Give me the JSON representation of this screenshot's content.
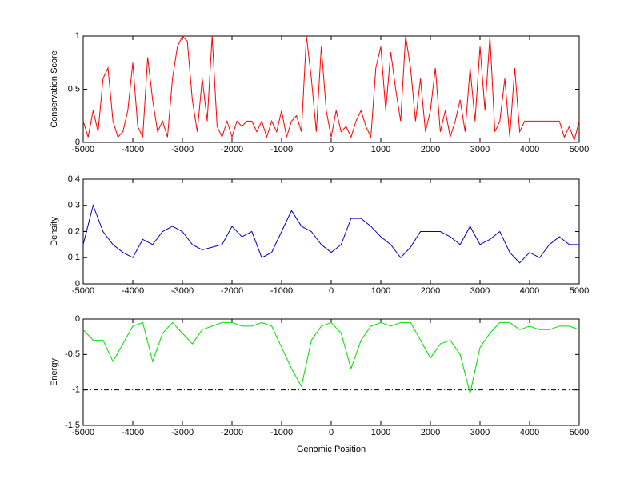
{
  "chart_data": [
    {
      "type": "line",
      "ylabel": "Conservation Score",
      "x": [
        -5000,
        -4900,
        -4800,
        -4700,
        -4600,
        -4500,
        -4400,
        -4300,
        -4200,
        -4100,
        -4000,
        -3900,
        -3800,
        -3700,
        -3600,
        -3500,
        -3400,
        -3300,
        -3200,
        -3100,
        -3000,
        -2900,
        -2800,
        -2700,
        -2600,
        -2500,
        -2400,
        -2300,
        -2200,
        -2100,
        -2000,
        -1900,
        -1800,
        -1700,
        -1600,
        -1500,
        -1400,
        -1300,
        -1200,
        -1100,
        -1000,
        -900,
        -800,
        -700,
        -600,
        -500,
        -400,
        -300,
        -200,
        -100,
        0,
        100,
        200,
        300,
        400,
        500,
        600,
        700,
        800,
        900,
        1000,
        1100,
        1200,
        1300,
        1400,
        1500,
        1600,
        1700,
        1800,
        1900,
        2000,
        2100,
        2200,
        2300,
        2400,
        2500,
        2600,
        2700,
        2800,
        2900,
        3000,
        3100,
        3200,
        3300,
        3400,
        3500,
        3600,
        3700,
        3800,
        3900,
        4000,
        4100,
        4200,
        4300,
        4400,
        4500,
        4600,
        4700,
        4800,
        4900,
        5000
      ],
      "series": [
        {
          "color": "#ff0000",
          "values": [
            0.2,
            0.05,
            0.3,
            0.1,
            0.6,
            0.7,
            0.2,
            0.05,
            0.1,
            0.3,
            0.75,
            0.15,
            0.05,
            0.8,
            0.4,
            0.1,
            0.2,
            0.05,
            0.6,
            0.9,
            1,
            0.95,
            0.4,
            0.1,
            0.6,
            0.2,
            1,
            0.15,
            0.05,
            0.2,
            0.05,
            0.2,
            0.15,
            0.2,
            0.2,
            0.1,
            0.2,
            0.05,
            0.2,
            0.1,
            0.3,
            0.05,
            0.2,
            0.25,
            0.1,
            1,
            0.6,
            0.1,
            0.9,
            0.3,
            0.05,
            0.3,
            0.1,
            0.15,
            0.05,
            0.2,
            0.3,
            0.15,
            0.05,
            0.7,
            0.9,
            0.3,
            0.85,
            0.5,
            0.2,
            1,
            0.7,
            0.2,
            0.6,
            0.1,
            0.3,
            0.7,
            0.1,
            0.3,
            0.05,
            0.2,
            0.4,
            0.1,
            0.7,
            0.2,
            0.9,
            0.3,
            1,
            0.1,
            0.2,
            0.6,
            0.05,
            0.7,
            0.1,
            0.2,
            0.2,
            0.2,
            0.2,
            0.2,
            0.2,
            0.2,
            0.2,
            0.05,
            0.15,
            0.02,
            0.2
          ]
        }
      ],
      "xlim": [
        -5000,
        5000
      ],
      "xticks": [
        -5000,
        -4000,
        -3000,
        -2000,
        -1000,
        0,
        1000,
        2000,
        3000,
        4000,
        5000
      ],
      "ylim": [
        0,
        1
      ],
      "yticks": [
        0,
        0.5,
        1
      ]
    },
    {
      "type": "line",
      "ylabel": "Density",
      "x": [
        -5000,
        -4800,
        -4600,
        -4400,
        -4200,
        -4000,
        -3800,
        -3600,
        -3400,
        -3200,
        -3000,
        -2800,
        -2600,
        -2400,
        -2200,
        -2000,
        -1800,
        -1600,
        -1400,
        -1200,
        -1000,
        -800,
        -600,
        -400,
        -200,
        0,
        200,
        400,
        600,
        800,
        1000,
        1200,
        1400,
        1600,
        1800,
        2000,
        2200,
        2400,
        2600,
        2800,
        3000,
        3200,
        3400,
        3600,
        3800,
        4000,
        4200,
        4400,
        4600,
        4800,
        5000
      ],
      "series": [
        {
          "color": "#0000c0",
          "values": [
            0.15,
            0.3,
            0.2,
            0.15,
            0.12,
            0.1,
            0.17,
            0.15,
            0.2,
            0.22,
            0.2,
            0.15,
            0.13,
            0.14,
            0.15,
            0.22,
            0.18,
            0.2,
            0.1,
            0.12,
            0.2,
            0.28,
            0.22,
            0.2,
            0.15,
            0.12,
            0.15,
            0.25,
            0.25,
            0.22,
            0.18,
            0.15,
            0.1,
            0.14,
            0.2,
            0.2,
            0.2,
            0.18,
            0.15,
            0.22,
            0.15,
            0.17,
            0.2,
            0.12,
            0.08,
            0.12,
            0.1,
            0.15,
            0.18,
            0.15,
            0.15
          ]
        }
      ],
      "xlim": [
        -5000,
        5000
      ],
      "xticks": [
        -5000,
        -4000,
        -3000,
        -2000,
        -1000,
        0,
        1000,
        2000,
        3000,
        4000,
        5000
      ],
      "ylim": [
        0,
        0.4
      ],
      "yticks": [
        0,
        0.1,
        0.2,
        0.3,
        0.4
      ]
    },
    {
      "type": "line",
      "ylabel": "Energy",
      "xlabel": "Genomic Position",
      "x": [
        -5000,
        -4800,
        -4600,
        -4400,
        -4200,
        -4000,
        -3800,
        -3600,
        -3400,
        -3200,
        -3000,
        -2800,
        -2600,
        -2400,
        -2200,
        -2000,
        -1800,
        -1600,
        -1400,
        -1200,
        -1000,
        -800,
        -600,
        -400,
        -200,
        0,
        200,
        400,
        600,
        800,
        1000,
        1200,
        1400,
        1600,
        1800,
        2000,
        2200,
        2400,
        2600,
        2800,
        3000,
        3200,
        3400,
        3600,
        3800,
        4000,
        4200,
        4400,
        4600,
        4800,
        5000
      ],
      "series": [
        {
          "color": "#00e000",
          "values": [
            -0.15,
            -0.3,
            -0.3,
            -0.6,
            -0.35,
            -0.1,
            -0.05,
            -0.6,
            -0.2,
            -0.05,
            -0.2,
            -0.35,
            -0.15,
            -0.1,
            -0.05,
            -0.05,
            -0.1,
            -0.1,
            -0.05,
            -0.1,
            -0.4,
            -0.7,
            -0.95,
            -0.3,
            -0.1,
            -0.05,
            -0.2,
            -0.7,
            -0.3,
            -0.1,
            -0.05,
            -0.1,
            -0.05,
            -0.05,
            -0.3,
            -0.55,
            -0.35,
            -0.3,
            -0.5,
            -1.05,
            -0.4,
            -0.2,
            -0.05,
            -0.05,
            -0.15,
            -0.1,
            -0.15,
            -0.15,
            -0.1,
            -0.1,
            -0.15
          ]
        }
      ],
      "hline": -1,
      "xlim": [
        -5000,
        5000
      ],
      "xticks": [
        -5000,
        -4000,
        -3000,
        -2000,
        -1000,
        0,
        1000,
        2000,
        3000,
        4000,
        5000
      ],
      "ylim": [
        -1.5,
        0
      ],
      "yticks": [
        -1.5,
        -1,
        -0.5,
        0
      ]
    }
  ]
}
